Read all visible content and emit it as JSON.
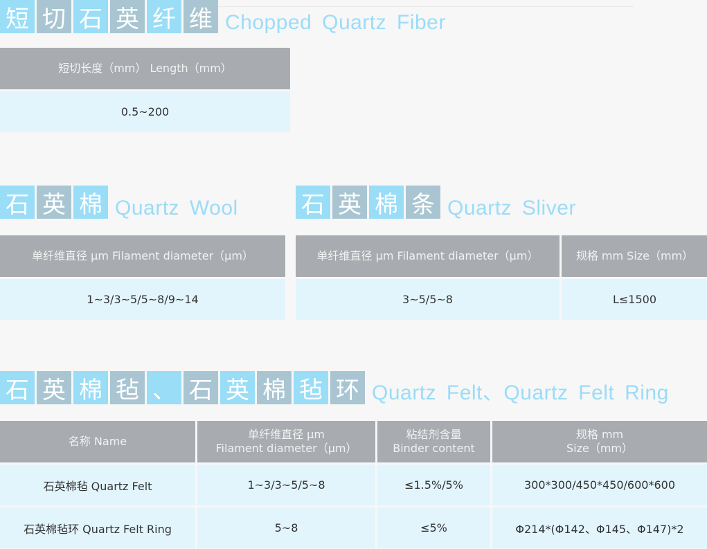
{
  "colors": {
    "tile_blue": "#99ddf7",
    "tile_gray": "#a9c5d2",
    "header": "#a8acb0",
    "row": "#e2f5fd",
    "title_text": "#9bdcf7"
  },
  "chopped": {
    "title_cn": [
      "短",
      "切",
      "石",
      "英",
      "纤",
      "维"
    ],
    "title_en": "Chopped Quartz Fiber",
    "headers": [
      "短切长度（mm） Length（mm）"
    ],
    "rows": [
      [
        "0.5~200"
      ]
    ]
  },
  "wool": {
    "title_cn": [
      "石",
      "英",
      "棉"
    ],
    "title_en": "Quartz Wool",
    "headers": [
      "单纤维直径 μm Filament diameter（μm）"
    ],
    "rows": [
      [
        "1~3/3~5/5~8/9~14"
      ]
    ]
  },
  "sliver": {
    "title_cn": [
      "石",
      "英",
      "棉",
      "条"
    ],
    "title_en": "Quartz Sliver",
    "headers": [
      "单纤维直径 μm Filament diameter（μm）",
      "规格 mm Size（mm）"
    ],
    "rows": [
      [
        "3~5/5~8",
        "L≤1500"
      ]
    ]
  },
  "felt": {
    "title_cn": [
      "石",
      "英",
      "棉",
      "毡",
      "、",
      "石",
      "英",
      "棉",
      "毡",
      "环"
    ],
    "title_en": "Quartz Felt、Quartz Felt Ring",
    "headers": [
      [
        "名称 Name"
      ],
      [
        "单纤维直径 μm",
        "Filament diameter（μm）"
      ],
      [
        "粘结剂含量",
        "Binder content"
      ],
      [
        "规格 mm",
        "Size（mm）"
      ]
    ],
    "rows": [
      [
        "石英棉毡 Quartz Felt",
        "1~3/3~5/5~8",
        "≤1.5%/5%",
        "300*300/450*450/600*600"
      ],
      [
        "石英棉毡环 Quartz Felt Ring",
        "5~8",
        "≤5%",
        "Φ214*(Φ142、Φ145、Φ147)*2"
      ]
    ]
  }
}
